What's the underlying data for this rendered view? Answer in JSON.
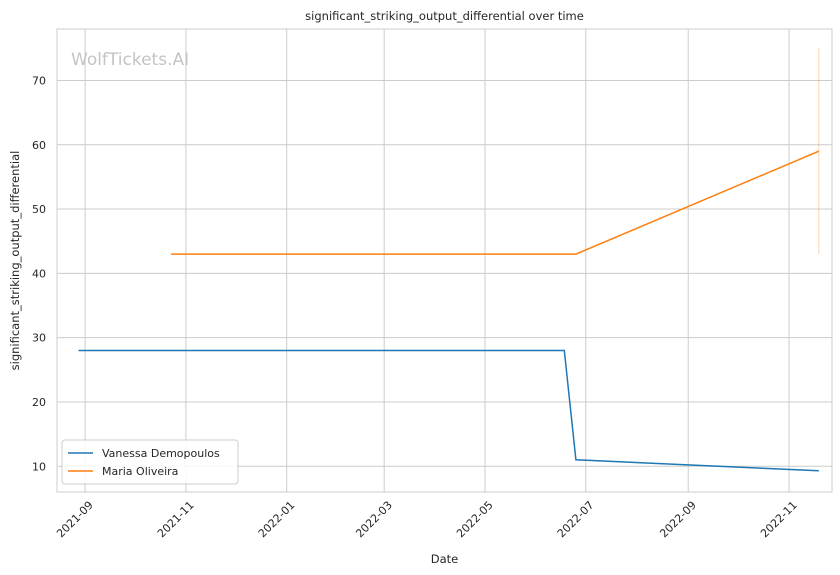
{
  "chart_data": {
    "type": "line",
    "title": "significant_striking_output_differential over time",
    "xlabel": "Date",
    "ylabel": "significant_striking_output_differential",
    "watermark": "WolfTickets.AI",
    "xlim": [
      "2021-08-15",
      "2022-11-27"
    ],
    "ylim": [
      6,
      78
    ],
    "x_ticks": [
      "2021-09",
      "2021-11",
      "2022-01",
      "2022-03",
      "2022-05",
      "2022-07",
      "2022-09",
      "2022-11"
    ],
    "y_ticks": [
      10,
      20,
      30,
      40,
      50,
      60,
      70
    ],
    "grid": true,
    "legend_position": "lower-left",
    "series": [
      {
        "name": "Vanessa Demopoulos",
        "color": "#1f77b4",
        "x": [
          "2021-08-28",
          "2022-06-18",
          "2022-06-25",
          "2022-11-19"
        ],
        "y": [
          28,
          28,
          11,
          9.3
        ]
      },
      {
        "name": "Maria Oliveira",
        "color": "#ff7f0e",
        "x": [
          "2021-10-23",
          "2022-06-25",
          "2022-11-19"
        ],
        "y": [
          43,
          43,
          59
        ]
      }
    ],
    "error_bars": [
      {
        "series": "Maria Oliveira",
        "x": "2022-11-19",
        "low": 43,
        "high": 75
      }
    ]
  }
}
